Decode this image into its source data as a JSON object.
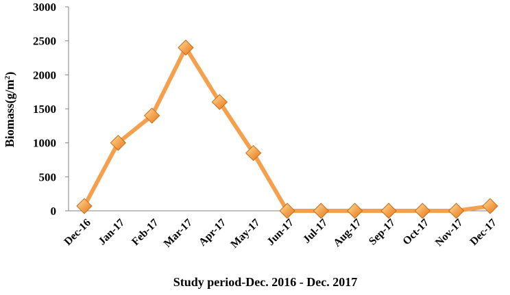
{
  "chart_data": {
    "type": "line",
    "categories": [
      "Dec-16",
      "Jan-17",
      "Feb-17",
      "Mar-17",
      "Apr-17",
      "May-17",
      "Jun-17",
      "Jul-17",
      "Aug-17",
      "Sep-17",
      "Oct-17",
      "Nov-17",
      "Dec-17"
    ],
    "series": [
      {
        "values": [
          70,
          1000,
          1400,
          2400,
          1600,
          850,
          0,
          0,
          0,
          0,
          0,
          0,
          70
        ]
      }
    ],
    "xlabel": "Study period-Dec. 2016 - Dec. 2017",
    "ylabel": "Biomass(g/m",
    "ylabel_superscript": "2",
    "ylabel_suffix": ")",
    "ylim": [
      0,
      3000
    ],
    "yticks": [
      "0",
      "500",
      "1000",
      "1500",
      "2000",
      "2500",
      "3000"
    ],
    "grid": false,
    "legend": "none",
    "colors": {
      "line": "#f4a04d",
      "marker_light": "#fde3a4",
      "marker_dark": "#e07d1e",
      "marker_edge": "#c86a12",
      "axis": "#808080"
    }
  }
}
